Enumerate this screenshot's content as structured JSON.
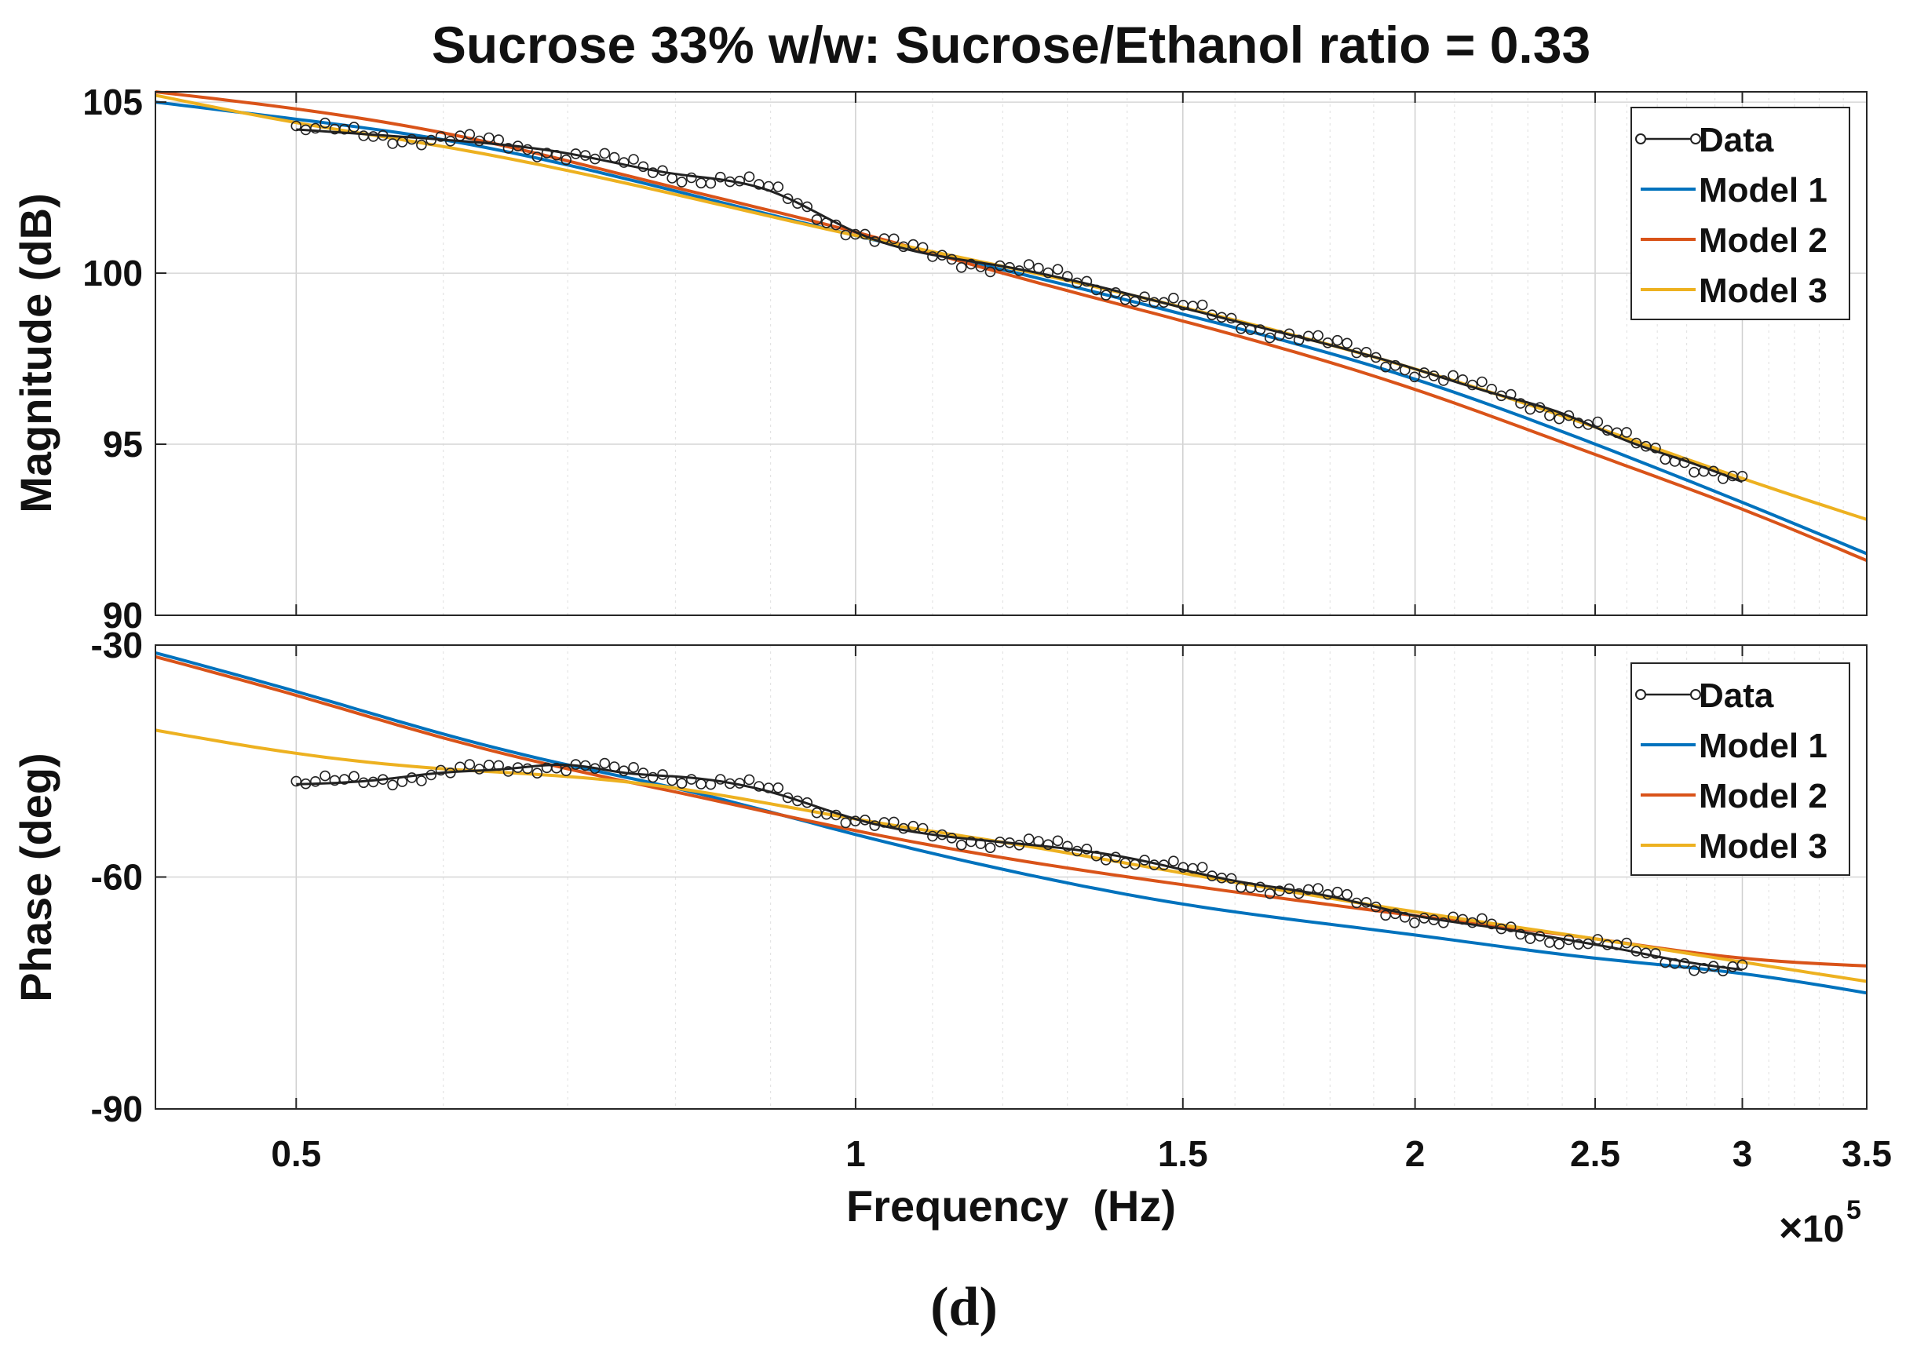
{
  "title": "Sucrose 33% w/w: Sucrose/Ethanol ratio = 0.33",
  "caption": "(d)",
  "xlabel": "Frequency  (Hz)",
  "x_multiplier": {
    "times": "×",
    "base": "10",
    "exponent": "5"
  },
  "colors": {
    "data": "#222222",
    "model1": "#0072BD",
    "model2": "#D95319",
    "model3": "#EDB120"
  },
  "chart_data": [
    {
      "type": "line",
      "name": "magnitude",
      "ylabel": "Magnitude (dB)",
      "xscale": "log",
      "xlim": [
        0.42,
        3.5
      ],
      "ylim": [
        90,
        105.3
      ],
      "grid": true,
      "legend_position": "top-right",
      "x_ticks": [
        0.5,
        1,
        1.5,
        2,
        2.5,
        3,
        3.5
      ],
      "y_ticks": [
        {
          "value": 105,
          "label": "105"
        },
        {
          "value": 100,
          "label": "100"
        },
        {
          "value": 95,
          "label": "95"
        },
        {
          "value": 90,
          "label": "90"
        }
      ],
      "series": [
        {
          "name": "Data",
          "color": "data",
          "marker": "o",
          "x": [
            0.5,
            0.6,
            0.7,
            0.8,
            0.9,
            1.0,
            1.2,
            1.4,
            1.6,
            1.8,
            2.0,
            2.2,
            2.4,
            2.6,
            2.8,
            3.0
          ],
          "y": [
            104.2,
            103.9,
            103.5,
            102.9,
            102.4,
            101.2,
            100.2,
            99.4,
            98.6,
            97.9,
            97.2,
            96.5,
            95.9,
            95.1,
            94.5,
            93.9
          ]
        },
        {
          "name": "Model 1",
          "color": "model1",
          "x": [
            0.42,
            0.5,
            0.6,
            0.8,
            1.0,
            1.2,
            1.5,
            2.0,
            2.5,
            3.0,
            3.5
          ],
          "y": [
            105.0,
            104.5,
            103.9,
            102.4,
            101.1,
            100.1,
            98.8,
            96.9,
            95.0,
            93.3,
            91.8
          ]
        },
        {
          "name": "Model 2",
          "color": "model2",
          "x": [
            0.42,
            0.5,
            0.6,
            0.8,
            1.0,
            1.2,
            1.5,
            2.0,
            2.5,
            3.0,
            3.5
          ],
          "y": [
            105.3,
            104.8,
            104.1,
            102.5,
            101.2,
            100.0,
            98.6,
            96.6,
            94.7,
            93.1,
            91.6
          ]
        },
        {
          "name": "Model 3",
          "color": "model3",
          "x": [
            0.42,
            0.5,
            0.6,
            0.8,
            1.0,
            1.2,
            1.5,
            2.0,
            2.5,
            3.0,
            3.5
          ],
          "y": [
            105.2,
            104.4,
            103.7,
            102.3,
            101.1,
            100.2,
            99.0,
            97.2,
            95.5,
            94.0,
            92.8
          ]
        }
      ]
    },
    {
      "type": "line",
      "name": "phase",
      "ylabel": "Phase (deg)",
      "xscale": "log",
      "xlim": [
        0.42,
        3.5
      ],
      "ylim": [
        -90,
        -30
      ],
      "grid": true,
      "legend_position": "top-right",
      "x_ticks": [
        0.5,
        1,
        1.5,
        2,
        2.5,
        3,
        3.5
      ],
      "y_ticks": [
        {
          "value": -30,
          "label": "-30"
        },
        {
          "value": -60,
          "label": "-60"
        },
        {
          "value": -90,
          "label": "-90"
        }
      ],
      "series": [
        {
          "name": "Data",
          "color": "data",
          "marker": "o",
          "x": [
            0.5,
            0.55,
            0.6,
            0.65,
            0.7,
            0.75,
            0.8,
            0.9,
            1.0,
            1.2,
            1.4,
            1.6,
            1.8,
            2.0,
            2.2,
            2.4,
            2.6,
            2.8,
            3.0
          ],
          "y": [
            -48.0,
            -47.5,
            -46.5,
            -46.0,
            -45.5,
            -46.5,
            -47.0,
            -49.0,
            -52.5,
            -55.5,
            -57.5,
            -60.5,
            -62.5,
            -65.0,
            -66.5,
            -68.0,
            -69.5,
            -71.0,
            -72.0
          ]
        },
        {
          "name": "Model 1",
          "color": "model1",
          "x": [
            0.42,
            0.5,
            0.6,
            0.7,
            0.8,
            1.0,
            1.2,
            1.5,
            2.0,
            2.5,
            3.0,
            3.5
          ],
          "y": [
            -31.0,
            -36.0,
            -41.5,
            -45.5,
            -48.5,
            -54.5,
            -59.0,
            -63.5,
            -67.5,
            -70.5,
            -72.5,
            -75.0
          ]
        },
        {
          "name": "Model 2",
          "color": "model2",
          "x": [
            0.42,
            0.5,
            0.6,
            0.7,
            0.8,
            1.0,
            1.2,
            1.5,
            2.0,
            2.5,
            3.0,
            3.5
          ],
          "y": [
            -31.5,
            -36.5,
            -42.0,
            -46.0,
            -49.0,
            -54.0,
            -57.5,
            -61.0,
            -65.0,
            -68.0,
            -70.5,
            -71.5
          ]
        },
        {
          "name": "Model 3",
          "color": "model3",
          "x": [
            0.42,
            0.5,
            0.6,
            0.7,
            0.8,
            1.0,
            1.2,
            1.5,
            2.0,
            2.5,
            3.0,
            3.5
          ],
          "y": [
            -41.0,
            -44.0,
            -46.0,
            -47.0,
            -48.5,
            -52.5,
            -55.5,
            -59.5,
            -64.5,
            -68.0,
            -71.0,
            -73.5
          ]
        }
      ]
    }
  ]
}
